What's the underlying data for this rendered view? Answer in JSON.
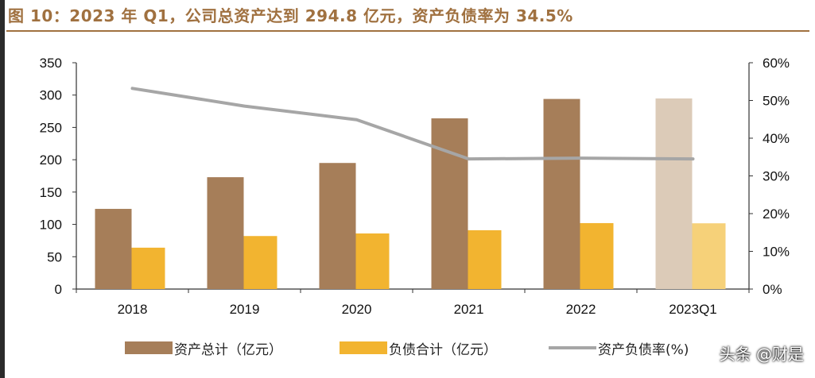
{
  "title": "图 10：2023 年 Q1，公司总资产达到 294.8 亿元，资产负债率为 34.5%",
  "watermark": "头条 @财是",
  "colors": {
    "assets": "#a67e59",
    "assets_faded": "#dccbb8",
    "liabilities": "#f2b430",
    "liabilities_faded": "#f6d179",
    "ratio": "#a6a6a6",
    "title": "#a07140"
  },
  "legend": {
    "assets": "资产总计（亿元）",
    "liabilities": "负债合计（亿元）",
    "ratio": "资产负债率(%)"
  },
  "chart_data": {
    "type": "bar",
    "categories": [
      "2018",
      "2019",
      "2020",
      "2021",
      "2022",
      "2023Q1"
    ],
    "series": [
      {
        "name": "资产总计（亿元）",
        "type": "bar",
        "axis": "left",
        "values": [
          124,
          173,
          195,
          264,
          294,
          294.8
        ]
      },
      {
        "name": "负债合计（亿元）",
        "type": "bar",
        "axis": "left",
        "values": [
          64,
          82,
          86,
          91,
          102,
          101.7
        ]
      },
      {
        "name": "资产负债率(%)",
        "type": "line",
        "axis": "right",
        "values": [
          53.2,
          48.5,
          44.9,
          34.5,
          34.7,
          34.5
        ]
      }
    ],
    "y_left": {
      "ylim": [
        0,
        350
      ],
      "ticks": [
        "0",
        "50",
        "100",
        "150",
        "200",
        "250",
        "300",
        "350"
      ]
    },
    "y_right": {
      "ylim": [
        0,
        60
      ],
      "ticks": [
        "0%",
        "10%",
        "20%",
        "30%",
        "40%",
        "50%",
        "60%"
      ]
    },
    "highlight_last_category_faded": true,
    "grid": false,
    "legend_position": "bottom"
  }
}
